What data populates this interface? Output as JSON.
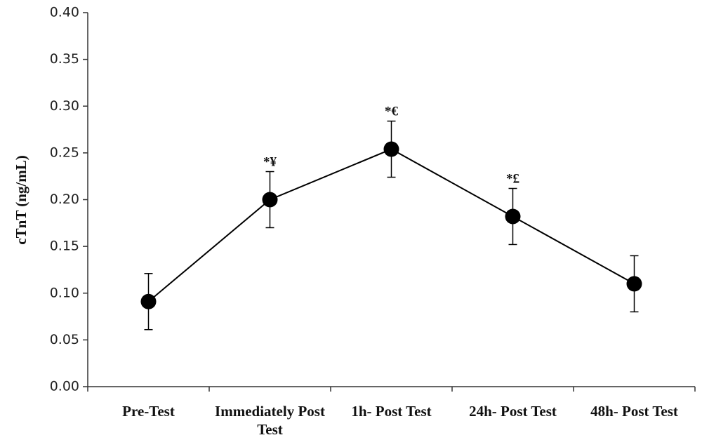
{
  "chart_data": {
    "type": "line",
    "ylabel": "cTnT (ng/mL)",
    "categories": [
      "Pre-Test",
      "Immediately Post Test",
      "1h- Post Test",
      "24h- Post Test",
      "48h- Post Test"
    ],
    "values": [
      0.091,
      0.2,
      0.254,
      0.182,
      0.11
    ],
    "errors": [
      0.03,
      0.03,
      0.03,
      0.03,
      0.03
    ],
    "annotations": [
      null,
      "*¥",
      "*€",
      "*£",
      null
    ],
    "color": "#000000",
    "ylim": [
      0,
      0.4
    ],
    "yticks": [
      {
        "value": 0,
        "label": "0.00"
      },
      0.05,
      {
        "value": 0.1,
        "label": "0.10"
      },
      0.15,
      {
        "value": 0.2,
        "label": "0.20"
      },
      0.25,
      {
        "value": 0.3,
        "label": "0.30"
      },
      0.35,
      {
        "value": 0.4,
        "label": "0.40"
      }
    ]
  }
}
